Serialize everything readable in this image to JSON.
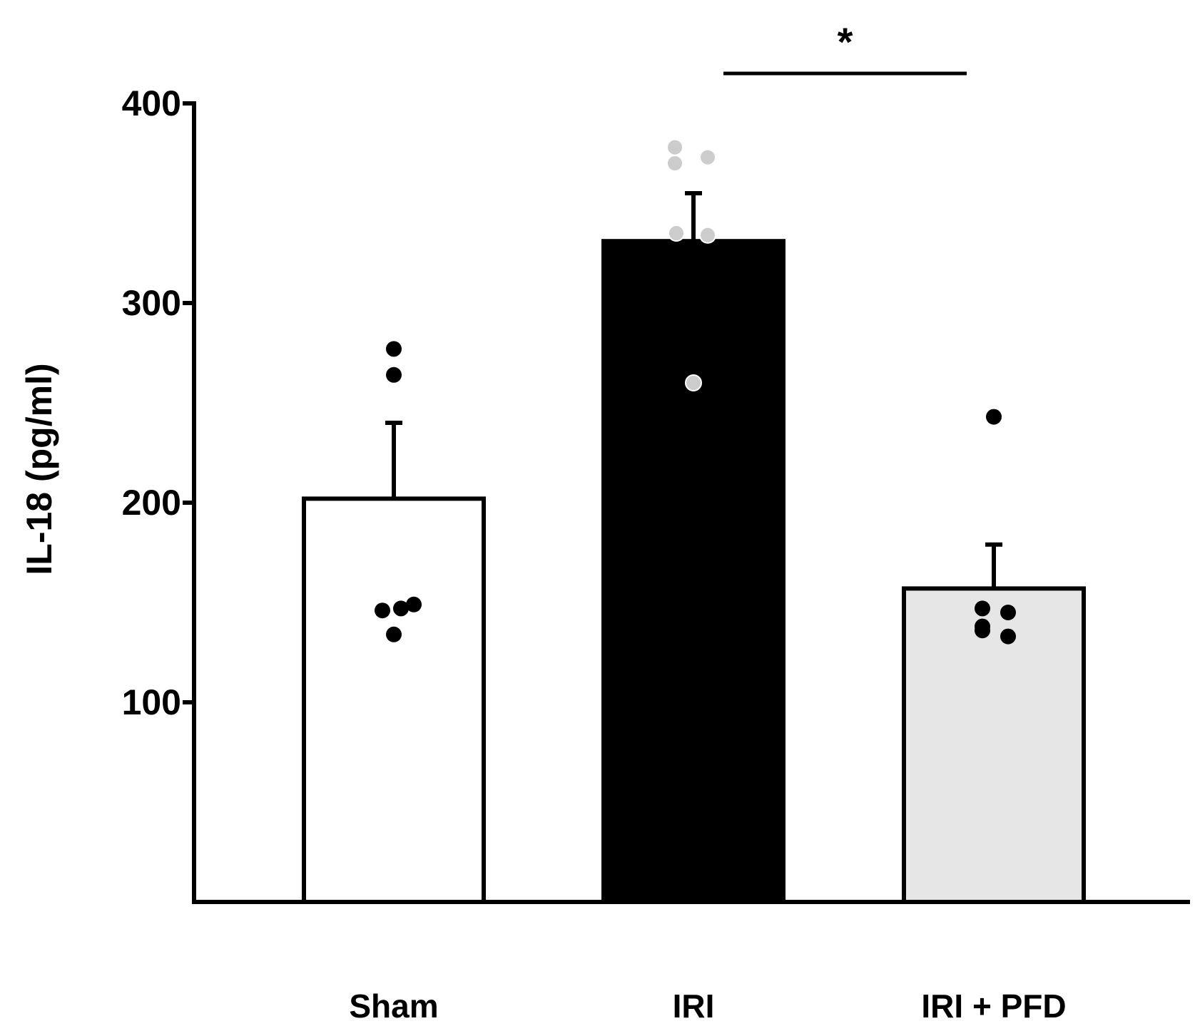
{
  "chart_data": {
    "type": "bar",
    "title": "",
    "xlabel": "",
    "ylabel": "IL-18 (pg/ml)",
    "ylim": [
      0,
      400
    ],
    "yticks": [
      100,
      200,
      300,
      400
    ],
    "grid": false,
    "categories": [
      "Sham",
      "IRI",
      "IRI + PFD"
    ],
    "values": [
      202,
      331,
      157
    ],
    "errors": [
      38,
      24,
      22
    ],
    "bar_colors": [
      "#ffffff",
      "#000000",
      "#e6e6e6"
    ],
    "point_colors": [
      "#000000",
      "#cccccc",
      "#000000"
    ],
    "points": [
      [
        277,
        264,
        146,
        147,
        149,
        134
      ],
      [
        378,
        370,
        373,
        335,
        334,
        260
      ],
      [
        243,
        147,
        145,
        138,
        136,
        133
      ]
    ],
    "annotations": [
      {
        "text": "*",
        "from": "IRI",
        "to": "IRI + PFD",
        "value": 415
      }
    ]
  }
}
